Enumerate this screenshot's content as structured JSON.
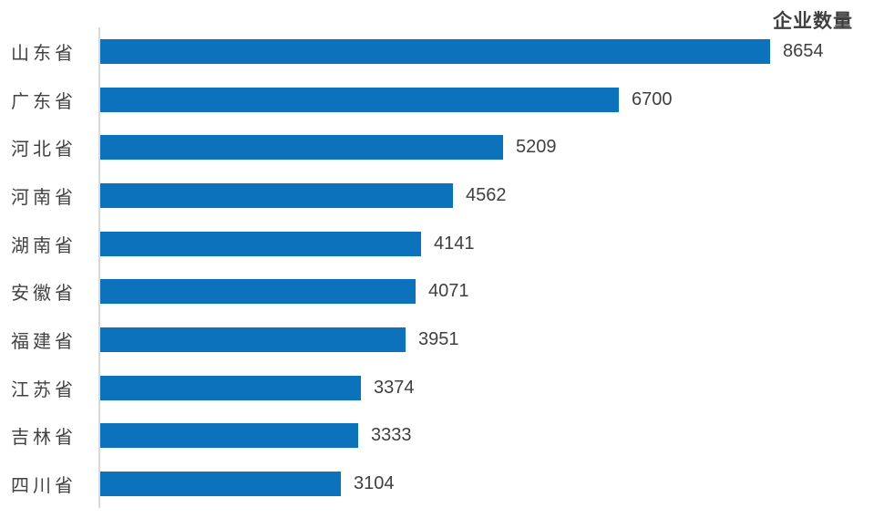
{
  "chart_data": {
    "type": "bar",
    "orientation": "horizontal",
    "title": "企业数量",
    "categories": [
      "山东省",
      "广东省",
      "河北省",
      "河南省",
      "湖南省",
      "安徽省",
      "福建省",
      "江苏省",
      "吉林省",
      "四川省"
    ],
    "values": [
      8654,
      6700,
      5209,
      4562,
      4141,
      4071,
      3951,
      3374,
      3333,
      3104
    ],
    "value_labels_shown": true,
    "xlim": [
      0,
      10000
    ],
    "grid": false,
    "legend_position": "none",
    "bar_color": "#0d72bc",
    "text_color": "#404040",
    "axis_line_color": "#d9d9d9"
  }
}
